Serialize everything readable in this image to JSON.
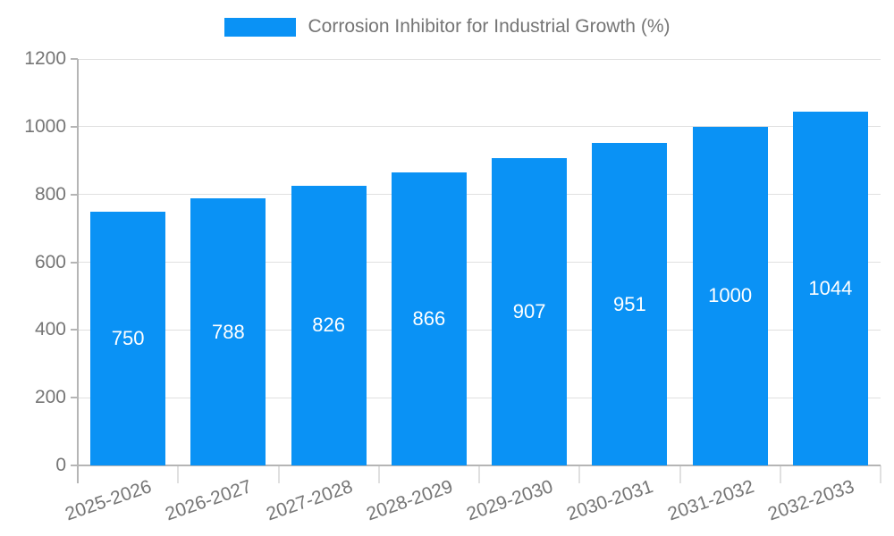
{
  "chart_data": {
    "type": "bar",
    "title": "Corrosion Inhibitor for Industrial Growth (%)",
    "categories": [
      "2025-2026",
      "2026-2027",
      "2027-2028",
      "2028-2029",
      "2029-2030",
      "2030-2031",
      "2031-2032",
      "2032-2033"
    ],
    "values": [
      750,
      788,
      826,
      866,
      907,
      951,
      1000,
      1044
    ],
    "bar_labels": [
      "750",
      "788",
      "826",
      "866",
      "907",
      "951",
      "1000",
      "1044"
    ],
    "xlabel": "",
    "ylabel": "",
    "ylim": [
      0,
      1200
    ],
    "yticks": [
      0,
      200,
      400,
      600,
      800,
      1000,
      1200
    ],
    "grid": true,
    "legend_position": "top-center",
    "bar_label_position": "inside-middle",
    "colors": {
      "bar": "#0a92f5",
      "bar_label": "#ffffff",
      "axis_text": "#757575",
      "grid": "#e0e0e0",
      "axis_line": "#b5b5b5",
      "background": "#ffffff"
    }
  }
}
